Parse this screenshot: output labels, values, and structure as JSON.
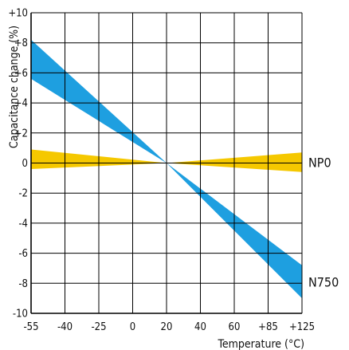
{
  "chart_data": {
    "type": "area",
    "title": "",
    "xlabel": "Temperature (°C)",
    "ylabel": "Capacitance change (%)",
    "x_ticks": [
      {
        "value": -55,
        "label": "-55"
      },
      {
        "value": -40,
        "label": "-40"
      },
      {
        "value": -25,
        "label": "-25"
      },
      {
        "value": 0,
        "label": "0"
      },
      {
        "value": 20,
        "label": "20"
      },
      {
        "value": 40,
        "label": "40"
      },
      {
        "value": 60,
        "label": "60"
      },
      {
        "value": 85,
        "label": "+85"
      },
      {
        "value": 125,
        "label": "+125"
      }
    ],
    "y_ticks": [
      {
        "value": 10,
        "label": "+10"
      },
      {
        "value": 8,
        "label": "+8"
      },
      {
        "value": 6,
        "label": "+6"
      },
      {
        "value": 4,
        "label": "+4"
      },
      {
        "value": 2,
        "label": "+2"
      },
      {
        "value": 0,
        "label": "0"
      },
      {
        "value": -2,
        "label": "-2"
      },
      {
        "value": -4,
        "label": "-4"
      },
      {
        "value": -6,
        "label": "-6"
      },
      {
        "value": -8,
        "label": "-8"
      },
      {
        "value": -10,
        "label": "-10"
      }
    ],
    "xlim": [
      -55,
      125
    ],
    "ylim": [
      -10,
      10
    ],
    "grid": true,
    "series": [
      {
        "name": "N750",
        "color": "#1e9fe0",
        "x": [
          -55,
          20,
          125
        ],
        "upper": [
          8.2,
          0,
          -6.8
        ],
        "lower": [
          5.6,
          0,
          -9.0
        ]
      },
      {
        "name": "NP0",
        "color": "#f5c800",
        "x": [
          -55,
          20,
          125
        ],
        "upper": [
          0.9,
          0,
          0.7
        ],
        "lower": [
          -0.4,
          0,
          -0.6
        ]
      }
    ]
  }
}
